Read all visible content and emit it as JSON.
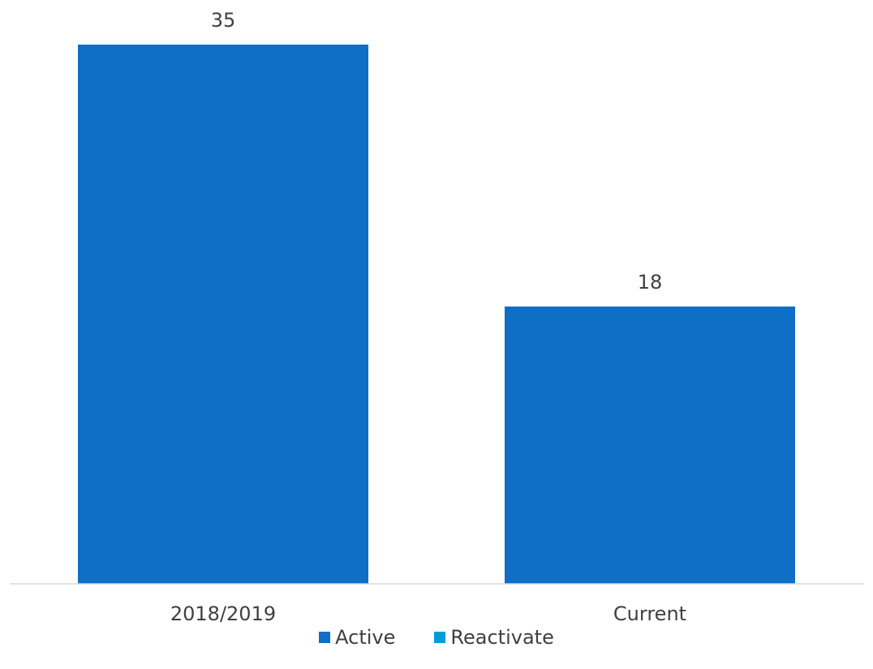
{
  "chart_data": {
    "type": "bar",
    "title": "",
    "xlabel": "",
    "ylabel": "",
    "categories": [
      "2018/2019",
      "Current"
    ],
    "series": [
      {
        "name": "Active",
        "values": [
          35,
          18
        ],
        "color": "#0f6fc6"
      },
      {
        "name": "Reactivate",
        "values": [
          0,
          0
        ],
        "color": "#009dd9"
      }
    ],
    "data_labels": [
      "35",
      "18"
    ],
    "ylim": [
      0,
      35
    ],
    "grid": false,
    "legend_position": "bottom"
  }
}
